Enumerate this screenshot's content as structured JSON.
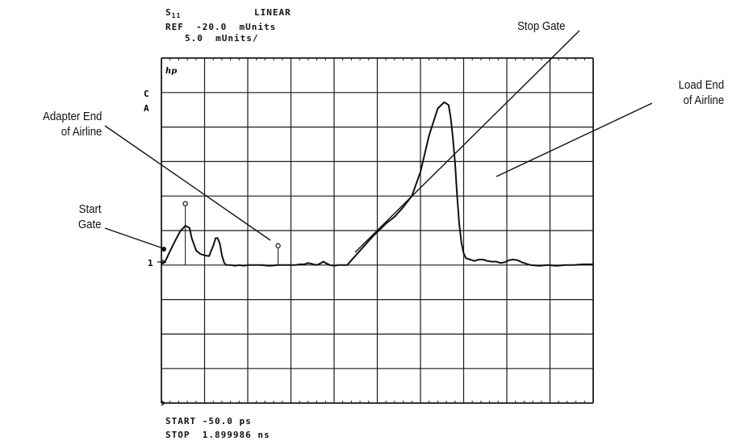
{
  "header": {
    "parameter": "S",
    "parameter_sub": "11",
    "format": "LINEAR",
    "reference": "REF  -20.0  mUnits",
    "scale": "5.0  mUnits/"
  },
  "screen": {
    "logo": "hp",
    "channel_flags": [
      "C",
      "A"
    ],
    "reference_marker_label": "1"
  },
  "footer": {
    "start_label": "START",
    "start_value": "-50.0 ps",
    "stop_label": "STOP",
    "stop_value": "1.899986 ns"
  },
  "annotations": {
    "stop_gate": "Stop Gate",
    "load_end": [
      "Load End",
      "of Airline"
    ],
    "adapter_end": [
      "Adapter End",
      "of Airline"
    ],
    "start_gate": [
      "Start",
      "Gate"
    ]
  },
  "chart_data": {
    "type": "line",
    "title": "",
    "xlabel": "",
    "ylabel": "",
    "x_unit": "ns",
    "xlim": [
      -0.05,
      1.899986
    ],
    "ylim": [
      -20,
      30
    ],
    "grid": true,
    "x_divisions": 10,
    "y_divisions": 10,
    "reference_value": 0,
    "series": [
      {
        "x": [
          -0.05,
          -0.039,
          -0.029,
          -0.01,
          0.01,
          0.035,
          0.058,
          0.077,
          0.087,
          0.107,
          0.126,
          0.146,
          0.165,
          0.185,
          0.195,
          0.204,
          0.214,
          0.224,
          0.234,
          0.243,
          0.263,
          0.282,
          0.302,
          0.321,
          0.341,
          0.399,
          0.438,
          0.477,
          0.516,
          0.555,
          0.574,
          0.594,
          0.613,
          0.652,
          0.672,
          0.682,
          0.691,
          0.711,
          0.73,
          0.75,
          0.769,
          0.789,
          0.847,
          0.906,
          0.964,
          1.003,
          1.042,
          1.081,
          1.12,
          1.159,
          1.198,
          1.227,
          1.247,
          1.256,
          1.266,
          1.276,
          1.286,
          1.295,
          1.305,
          1.315,
          1.325,
          1.344,
          1.364,
          1.383,
          1.403,
          1.422,
          1.442,
          1.461,
          1.481,
          1.5,
          1.519,
          1.539,
          1.558,
          1.578,
          1.617,
          1.656,
          1.695,
          1.734,
          1.773,
          1.812,
          1.851,
          1.899986
        ],
        "y": [
          0.3,
          0.3,
          0.8,
          2.1,
          3.4,
          4.9,
          5.7,
          5.4,
          3.9,
          2.1,
          1.6,
          1.4,
          1.3,
          2.9,
          3.9,
          3.9,
          3.1,
          1.3,
          0.3,
          0.0,
          0.0,
          -0.1,
          0.0,
          -0.1,
          0.0,
          0.0,
          -0.1,
          0.0,
          0.0,
          0.0,
          0.1,
          0.1,
          0.3,
          0.0,
          0.3,
          0.5,
          0.3,
          0.0,
          -0.1,
          0.0,
          0.0,
          0.0,
          2.1,
          4.2,
          6.0,
          7.0,
          8.4,
          10.0,
          13.5,
          18.8,
          22.7,
          23.6,
          23.2,
          21.5,
          18.5,
          14.9,
          9.9,
          6.0,
          3.2,
          1.7,
          1.0,
          0.8,
          0.6,
          0.8,
          0.8,
          0.6,
          0.5,
          0.5,
          0.3,
          0.4,
          0.7,
          0.8,
          0.7,
          0.4,
          0.0,
          -0.1,
          0.0,
          -0.1,
          0.0,
          0.0,
          0.1,
          0.1
        ]
      }
    ],
    "markers": [
      {
        "x": 0.058,
        "y": 8.9,
        "symbol": "circle"
      },
      {
        "x": 0.477,
        "y": 2.8,
        "symbol": "circle"
      }
    ]
  }
}
